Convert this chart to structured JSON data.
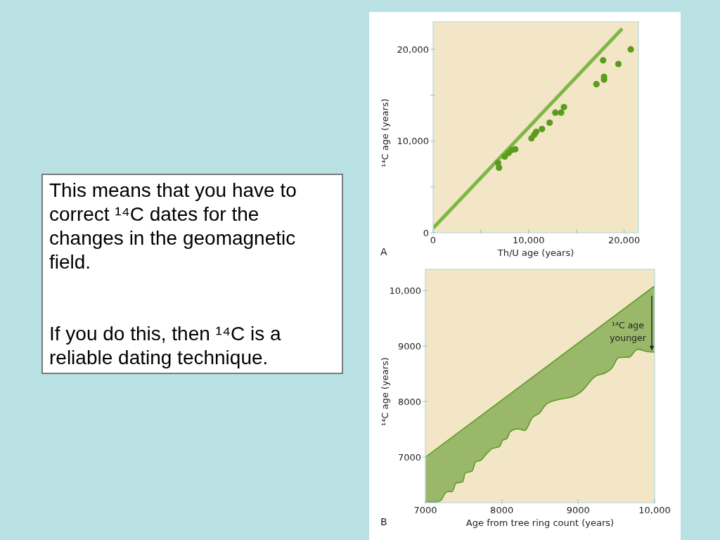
{
  "chart_data": [
    {
      "type": "other",
      "annotations": [
        "This means that you have to correct ¹⁴C dates for the changes in the geomagnetic field.",
        "If you do this, then ¹⁴C is a reliable dating technique."
      ]
    },
    {
      "type": "scatter",
      "title": "A",
      "xlabel": "Th/U age (years)",
      "ylabel": "¹⁴C age (years)",
      "xlim": [
        0,
        21500
      ],
      "ylim": [
        0,
        23000
      ],
      "xticks": [
        0,
        {
          "value": 5000,
          "label": null
        },
        {
          "value": 10000,
          "label": "10,000"
        },
        {
          "value": 15000,
          "label": null
        },
        {
          "value": 20000,
          "label": "20,000"
        }
      ],
      "yticks": [
        0,
        {
          "value": 5000,
          "label": null
        },
        {
          "value": 10000,
          "label": "10,000"
        },
        {
          "value": 15000,
          "label": null
        },
        {
          "value": 20000,
          "label": "20,000"
        }
      ],
      "series": [
        {
          "type": "line",
          "color": "#7db846",
          "x": [
            0,
            19800
          ],
          "values": [
            500,
            22250
          ]
        },
        {
          "type": "scatter",
          "marker": "circle",
          "color": "#5a9c1c",
          "x": [
            6800,
            6900,
            7500,
            7900,
            8200,
            8600,
            10300,
            10600,
            10800,
            11400,
            12200,
            12800,
            13400,
            13700,
            17100,
            17900,
            17900,
            17800,
            19400,
            20700
          ],
          "values": [
            7600,
            7100,
            8300,
            8700,
            9000,
            9100,
            10300,
            10700,
            11000,
            11300,
            12000,
            13100,
            13100,
            13700,
            16200,
            17000,
            16700,
            18800,
            18400,
            20000
          ]
        }
      ]
    },
    {
      "type": "line",
      "title": "B",
      "xlabel": "Age from tree ring count (years)",
      "ylabel": "¹⁴C age (years)",
      "xlim": [
        7000,
        10000
      ],
      "ylim": [
        6180,
        10380
      ],
      "xticks": [
        7000,
        8000,
        9000,
        {
          "value": 10000,
          "label": "10,000"
        }
      ],
      "yticks": [
        7000,
        8000,
        9000,
        {
          "value": 10000,
          "label": "10,000"
        }
      ],
      "annotations": [
        {
          "text": "¹⁴C age younger",
          "x": 10000,
          "y": 8890
        }
      ],
      "series": [
        {
          "type": "line",
          "color": "#5e9a2c",
          "x": [
            7000,
            10000
          ],
          "values": [
            7000,
            10080
          ]
        },
        {
          "type": "line",
          "color": "#5e9a2c",
          "x": [
            7000,
            7120,
            7200,
            7260,
            7290,
            7350,
            7400,
            7490,
            7520,
            7610,
            7660,
            7720,
            7800,
            7870,
            7970,
            8010,
            8070,
            8110,
            8210,
            8300,
            8400,
            8490,
            8580,
            8670,
            8790,
            8930,
            9040,
            9220,
            9360,
            9440,
            9530,
            9670,
            9750,
            9790,
            9900,
            10000
          ],
          "values": [
            6200,
            6190,
            6220,
            6350,
            6380,
            6380,
            6530,
            6560,
            6710,
            6750,
            6920,
            6940,
            7060,
            7150,
            7190,
            7300,
            7340,
            7460,
            7510,
            7480,
            7710,
            7790,
            7950,
            8010,
            8050,
            8090,
            8180,
            8450,
            8520,
            8600,
            8790,
            8800,
            8920,
            8940,
            8900,
            8890
          ],
          "lower": [
            6200,
            6190,
            6220,
            6350,
            6380,
            6380,
            6530,
            6560,
            6710,
            6750,
            6920,
            6940,
            7060,
            7150,
            7190,
            7300,
            7340,
            7460,
            7510,
            7480,
            7710,
            7790,
            7950,
            8010,
            8050,
            8090,
            8180,
            8450,
            8520,
            8600,
            8790,
            8800,
            8920,
            8940,
            8900,
            8890
          ],
          "upper": [
            7000,
            7120,
            7210,
            7270,
            7300,
            7360,
            7410,
            7500,
            7530,
            7630,
            7680,
            7740,
            7820,
            7890,
            8000,
            8040,
            8100,
            8140,
            8240,
            8340,
            8440,
            8530,
            8620,
            8720,
            8840,
            8980,
            9090,
            9280,
            9420,
            9510,
            9600,
            9740,
            9820,
            9860,
            9980,
            10080
          ]
        }
      ]
    }
  ]
}
